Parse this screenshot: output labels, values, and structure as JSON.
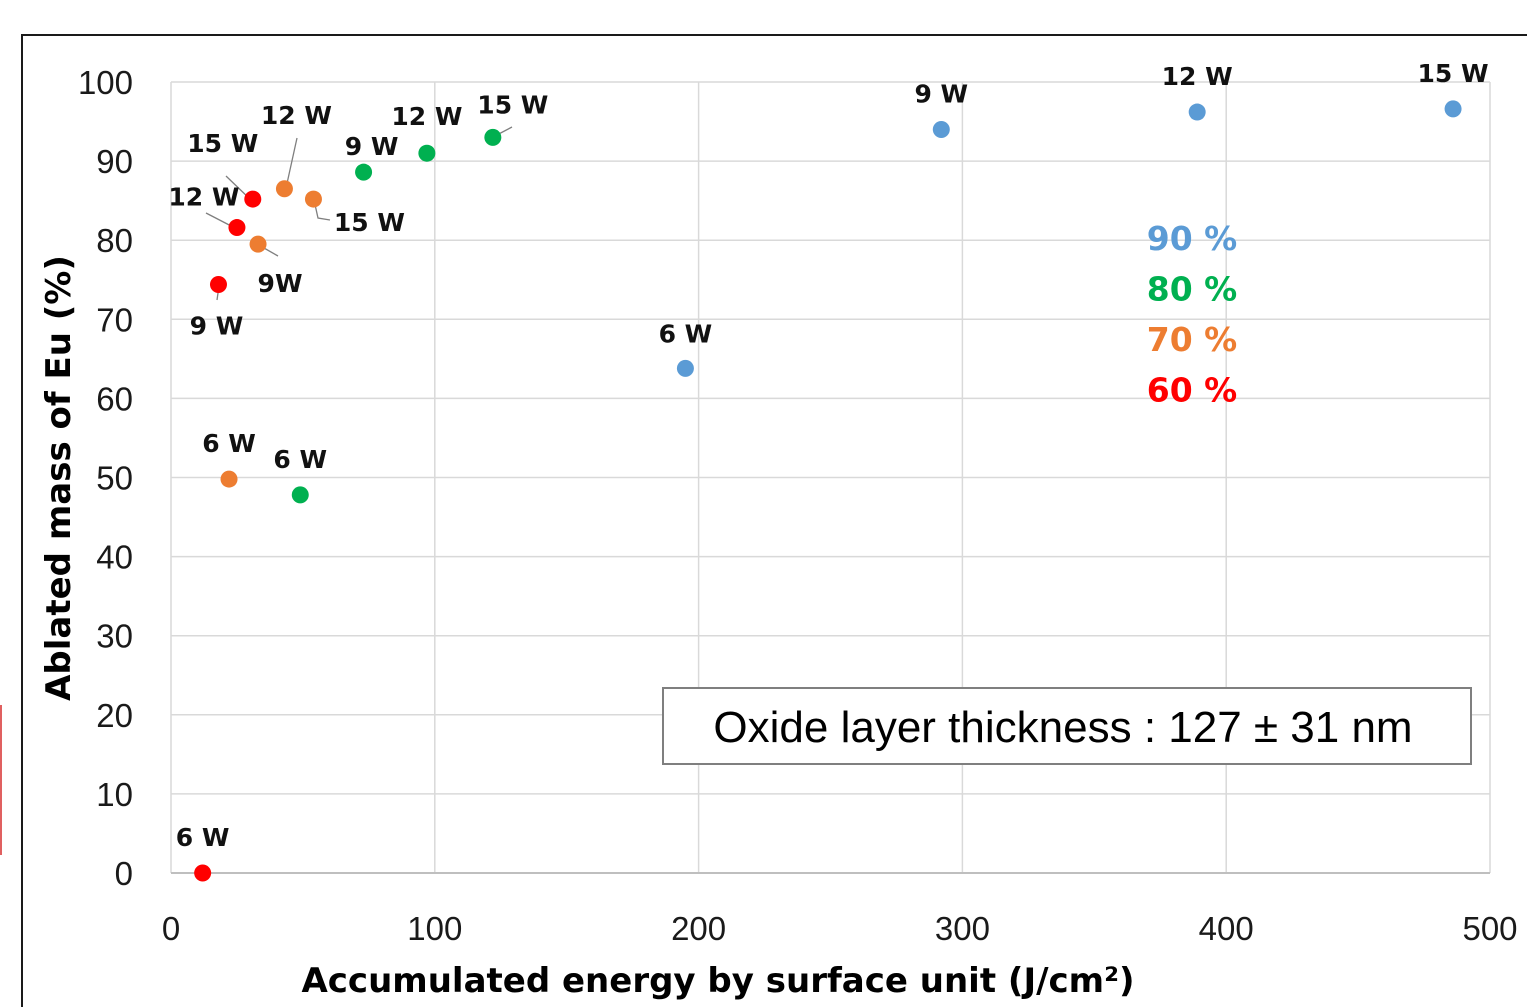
{
  "chart_data": {
    "type": "scatter",
    "title": "",
    "xlabel": "Accumulated energy by surface unit (J/cm²)",
    "ylabel": "Ablated mass of Eu  (%)",
    "xlim": [
      0,
      500
    ],
    "ylim": [
      0,
      100
    ],
    "xticks": [
      "0",
      "100",
      "200",
      "300",
      "400",
      "500"
    ],
    "yticks": [
      "0",
      "10",
      "20",
      "30",
      "40",
      "50",
      "60",
      "70",
      "80",
      "90",
      "100"
    ],
    "grid": true,
    "legend_position": "right",
    "annotation": "Oxide layer thickness : 127 ± 31 nm",
    "series": [
      {
        "name": "90 %",
        "color": "#5B9BD5",
        "points": [
          {
            "x": 195,
            "y": 63.8,
            "label": "6 W"
          },
          {
            "x": 292,
            "y": 94.0,
            "label": "9 W"
          },
          {
            "x": 389,
            "y": 96.2,
            "label": "12 W"
          },
          {
            "x": 486,
            "y": 96.6,
            "label": "15 W"
          }
        ]
      },
      {
        "name": "80 %",
        "color": "#00B050",
        "points": [
          {
            "x": 49,
            "y": 47.8,
            "label": "6 W"
          },
          {
            "x": 73,
            "y": 88.6,
            "label": "9 W"
          },
          {
            "x": 97,
            "y": 91.0,
            "label": "12 W"
          },
          {
            "x": 122,
            "y": 93.0,
            "label": "15 W"
          }
        ]
      },
      {
        "name": "70 %",
        "color": "#ED7D31",
        "points": [
          {
            "x": 22,
            "y": 49.8,
            "label": "6 W"
          },
          {
            "x": 33,
            "y": 79.5,
            "label": "9W"
          },
          {
            "x": 43,
            "y": 86.5,
            "label": "12 W"
          },
          {
            "x": 54,
            "y": 85.2,
            "label": "15 W"
          }
        ]
      },
      {
        "name": "60 %",
        "color": "#FF0000",
        "points": [
          {
            "x": 12,
            "y": 0.0,
            "label": "6 W"
          },
          {
            "x": 18,
            "y": 74.4,
            "label": "9 W"
          },
          {
            "x": 25,
            "y": 81.6,
            "label": "12 W"
          },
          {
            "x": 31,
            "y": 85.2,
            "label": "15 W"
          }
        ]
      }
    ]
  }
}
